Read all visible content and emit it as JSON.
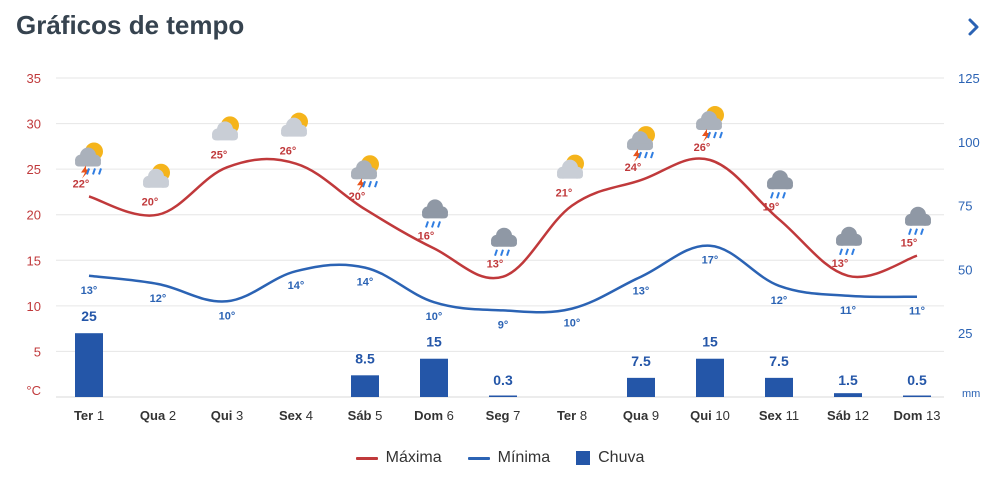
{
  "header": {
    "title": "Gráficos de tempo",
    "next_icon": "chevron-right-icon"
  },
  "colors": {
    "max": "#c0393b",
    "min": "#2b63b4",
    "rain": "#2456a8",
    "left_axis": "#c0393b",
    "right_axis": "#2b63b4",
    "grid": "#e6e6e6"
  },
  "chart_data": {
    "type": "line",
    "title": "Gráficos de tempo",
    "categories": [
      {
        "day": "Ter",
        "num": "1"
      },
      {
        "day": "Qua",
        "num": "2"
      },
      {
        "day": "Qui",
        "num": "3"
      },
      {
        "day": "Sex",
        "num": "4"
      },
      {
        "day": "Sáb",
        "num": "5"
      },
      {
        "day": "Dom",
        "num": "6"
      },
      {
        "day": "Seg",
        "num": "7"
      },
      {
        "day": "Ter",
        "num": "8"
      },
      {
        "day": "Qua",
        "num": "9"
      },
      {
        "day": "Qui",
        "num": "10"
      },
      {
        "day": "Sex",
        "num": "11"
      },
      {
        "day": "Sáb",
        "num": "12"
      },
      {
        "day": "Dom",
        "num": "13"
      }
    ],
    "series": [
      {
        "name": "Máxima",
        "axis": "left",
        "unit": "°",
        "values": [
          22,
          20,
          25,
          26,
          20,
          16,
          13,
          21,
          24,
          26,
          19,
          13,
          15
        ],
        "plot_values": [
          22,
          20,
          25.2,
          25.6,
          20.6,
          16.3,
          13.2,
          21,
          23.8,
          26,
          19.5,
          13.3,
          15.5
        ]
      },
      {
        "name": "Mínima",
        "axis": "left",
        "unit": "°",
        "values": [
          13,
          12,
          10,
          14,
          14,
          10,
          9,
          10,
          13,
          17,
          12,
          11,
          11
        ],
        "plot_values": [
          13.3,
          12.4,
          10.5,
          13.8,
          14.2,
          10.4,
          9.5,
          9.7,
          13.2,
          16.6,
          12.2,
          11.1,
          11
        ]
      },
      {
        "name": "Chuva",
        "axis": "right",
        "type": "bar",
        "unit": "mm",
        "values": [
          25,
          0,
          0,
          0,
          8.5,
          15,
          0.3,
          0,
          7.5,
          15,
          7.5,
          1.5,
          0.5
        ],
        "labels": [
          "25",
          "",
          "",
          "",
          "8.5",
          "15",
          "0.3",
          "",
          "7.5",
          "15",
          "7.5",
          "1.5",
          "0.5"
        ]
      }
    ],
    "weather_icons": [
      "thunderstorm-icon",
      "partly-cloudy-icon",
      "partly-cloudy-icon",
      "partly-cloudy-icon",
      "thunderstorm-icon",
      "rain-cloud-icon",
      "rain-cloud-icon",
      "partly-cloudy-icon",
      "thunderstorm-icon",
      "thunderstorm-icon",
      "rain-cloud-icon",
      "rain-cloud-icon",
      "rain-cloud-icon"
    ],
    "y_left": {
      "ticks": [
        "35",
        "30",
        "25",
        "20",
        "15",
        "10",
        "5"
      ],
      "unit": "°C",
      "range": [
        0,
        35
      ]
    },
    "y_right": {
      "ticks": [
        "125",
        "100",
        "75",
        "50",
        "25"
      ],
      "unit": "mm",
      "range": [
        0,
        125
      ]
    },
    "grid": true,
    "legend_position": "bottom"
  }
}
